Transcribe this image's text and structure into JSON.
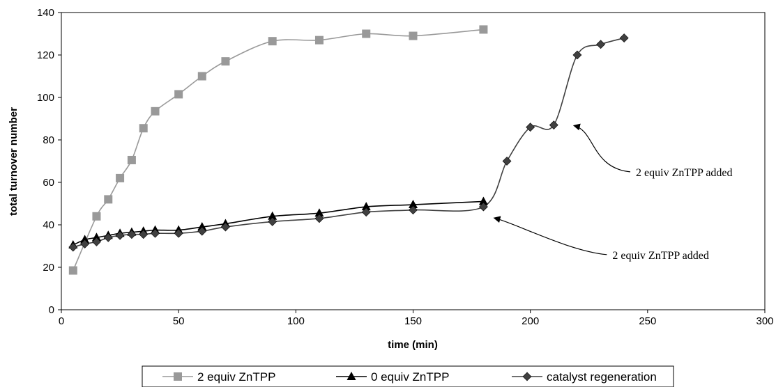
{
  "chart_data": {
    "type": "line",
    "xlabel": "time (min)",
    "ylabel": "total turnover number",
    "xlim": [
      0,
      300
    ],
    "ylim": [
      0,
      140
    ],
    "x_ticks": [
      "0",
      "50",
      "100",
      "150",
      "200",
      "250",
      "300"
    ],
    "y_ticks": [
      "0",
      "20",
      "40",
      "60",
      "80",
      "100",
      "120",
      "140"
    ],
    "grid": false,
    "legend_position": "bottom",
    "series": [
      {
        "name": "2 equiv ZnTPP",
        "marker": "square",
        "color": "#999999",
        "x": [
          5,
          15,
          20,
          25,
          30,
          35,
          40,
          50,
          60,
          70,
          90,
          110,
          130,
          150,
          180
        ],
        "y": [
          18.5,
          44,
          52,
          62,
          70.5,
          85.5,
          93.5,
          101.5,
          110,
          117,
          126.5,
          127,
          130,
          129,
          132
        ]
      },
      {
        "name": "0 equiv ZnTPP",
        "marker": "triangle",
        "color": "#000000",
        "x": [
          5,
          10,
          15,
          20,
          25,
          30,
          35,
          40,
          50,
          60,
          70,
          90,
          110,
          130,
          150,
          180
        ],
        "y": [
          30.5,
          33,
          34,
          35,
          36,
          36.5,
          37,
          37.5,
          37.5,
          39,
          40.5,
          44,
          45.5,
          48.5,
          49.5,
          51
        ]
      },
      {
        "name": "catalyst regeneration",
        "marker": "diamond",
        "color": "#404040",
        "x": [
          5,
          10,
          15,
          20,
          25,
          30,
          35,
          40,
          50,
          60,
          70,
          90,
          110,
          130,
          150,
          180,
          190,
          200,
          210,
          220,
          230,
          240
        ],
        "y": [
          29.5,
          31,
          32,
          34,
          35,
          35.5,
          35.5,
          36,
          36,
          37,
          39,
          41.5,
          43,
          46,
          47,
          48.5,
          70,
          86,
          87,
          120,
          125,
          128
        ]
      }
    ],
    "annotations": [
      {
        "text": "2 equiv ZnTPP added",
        "point_to": [
          217,
          87
        ],
        "text_at": [
          245,
          63
        ]
      },
      {
        "text": "2 equiv ZnTPP added",
        "point_to": [
          183,
          43.5
        ],
        "text_at": [
          235,
          24
        ]
      }
    ]
  }
}
